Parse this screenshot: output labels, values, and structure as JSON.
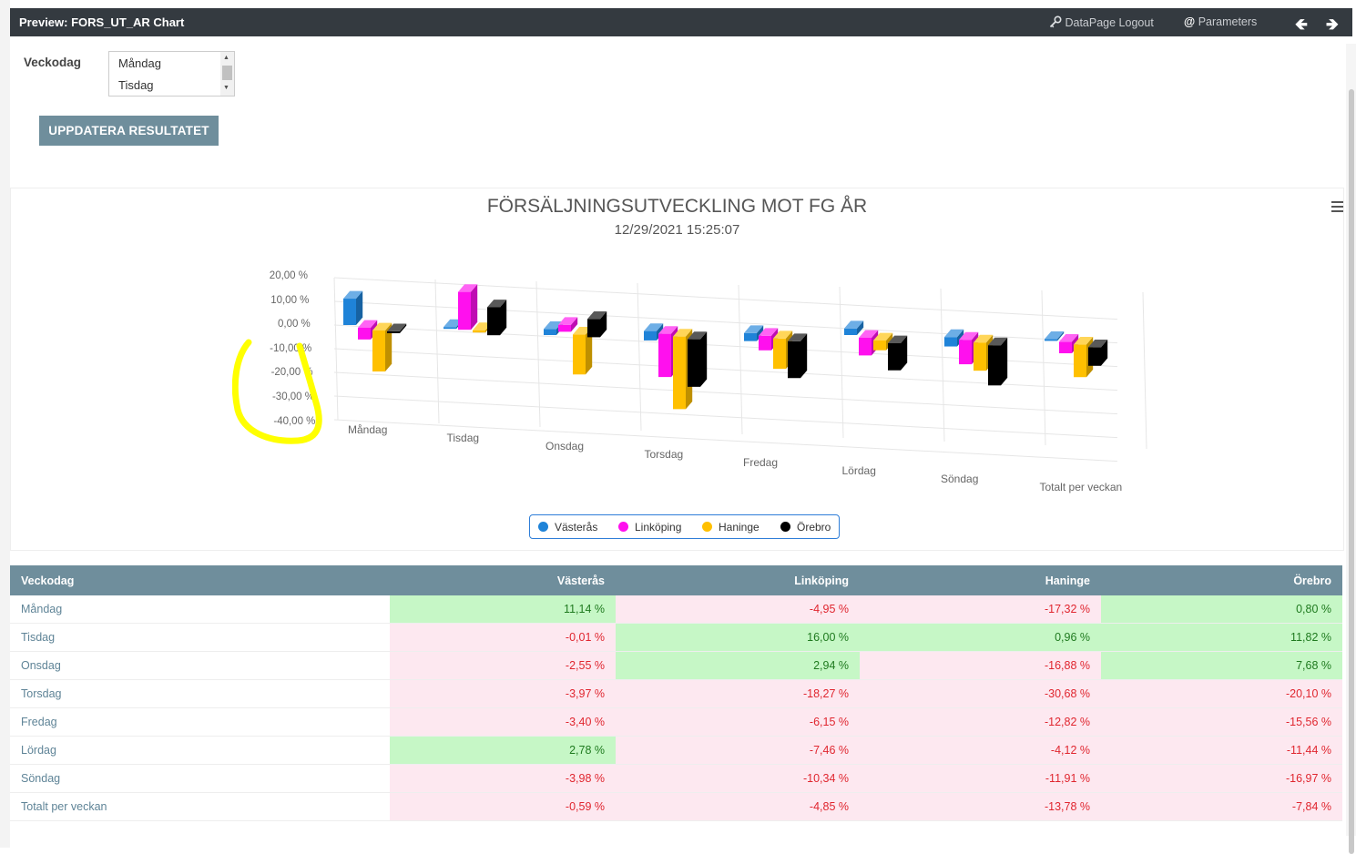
{
  "window": {
    "title": "Preview: FORS_UT_AR Chart",
    "logout_label": "DataPage Logout",
    "parameters_label": "Parameters",
    "back_glyph": "🡸",
    "forward_glyph": "🡺"
  },
  "params": {
    "label": "Veckodag",
    "options": [
      "Måndag",
      "Tisdag"
    ],
    "update_button": "UPPDATERA RESULTATET"
  },
  "chart_data": {
    "type": "bar",
    "title": "FÖRSÄLJNINGSUTVECKLING MOT FG ÅR",
    "subtitle": "12/29/2021 15:25:07",
    "categories": [
      "Måndag",
      "Tisdag",
      "Onsdag",
      "Torsdag",
      "Fredag",
      "Lördag",
      "Söndag",
      "Totalt per veckan"
    ],
    "yticks": [
      "20,00 %",
      "10,00 %",
      "0,00 %",
      "-10,00 %",
      "-20,00 %",
      "-30,00 %",
      "-40,00 %"
    ],
    "ylim": [
      -40,
      20
    ],
    "grid": true,
    "legend_position": "bottom-center",
    "series": [
      {
        "name": "Västerås",
        "color": "#1f83d8",
        "values": [
          11.14,
          -0.01,
          -2.55,
          -3.97,
          -3.4,
          2.78,
          -3.98,
          -0.59
        ]
      },
      {
        "name": "Linköping",
        "color": "#ff10ee",
        "values": [
          -4.95,
          16.0,
          2.94,
          -18.27,
          -6.15,
          -7.46,
          -10.34,
          -4.85
        ]
      },
      {
        "name": "Haninge",
        "color": "#ffc000",
        "values": [
          -17.32,
          0.96,
          -16.88,
          -30.68,
          -12.82,
          -4.12,
          -11.91,
          -13.78
        ]
      },
      {
        "name": "Örebro",
        "color": "#000000",
        "values": [
          0.8,
          11.82,
          7.68,
          -20.1,
          -15.56,
          -11.44,
          -16.97,
          -7.84
        ]
      }
    ]
  },
  "table": {
    "headers": [
      "Veckodag",
      "Västerås",
      "Linköping",
      "Haninge",
      "Örebro"
    ],
    "rows": [
      [
        "Måndag",
        "11,14 %",
        "-4,95 %",
        "-17,32 %",
        "0,80 %"
      ],
      [
        "Tisdag",
        "-0,01 %",
        "16,00 %",
        "0,96 %",
        "11,82 %"
      ],
      [
        "Onsdag",
        "-2,55 %",
        "2,94 %",
        "-16,88 %",
        "7,68 %"
      ],
      [
        "Torsdag",
        "-3,97 %",
        "-18,27 %",
        "-30,68 %",
        "-20,10 %"
      ],
      [
        "Fredag",
        "-3,40 %",
        "-6,15 %",
        "-12,82 %",
        "-15,56 %"
      ],
      [
        "Lördag",
        "2,78 %",
        "-7,46 %",
        "-4,12 %",
        "-11,44 %"
      ],
      [
        "Söndag",
        "-3,98 %",
        "-10,34 %",
        "-11,91 %",
        "-16,97 %"
      ],
      [
        "Totalt per veckan",
        "-0,59 %",
        "-4,85 %",
        "-13,78 %",
        "-7,84 %"
      ]
    ]
  },
  "colors": {
    "topbar": "#343a40",
    "accent": "#6f8e9c",
    "positive_bg": "#c6f7c6",
    "negative_bg": "#fde8f0",
    "highlight_marker": "#ffff00"
  },
  "icons": {
    "logout": "key-icon",
    "parameters": "at-icon",
    "chart_menu": "hamburger-icon"
  }
}
